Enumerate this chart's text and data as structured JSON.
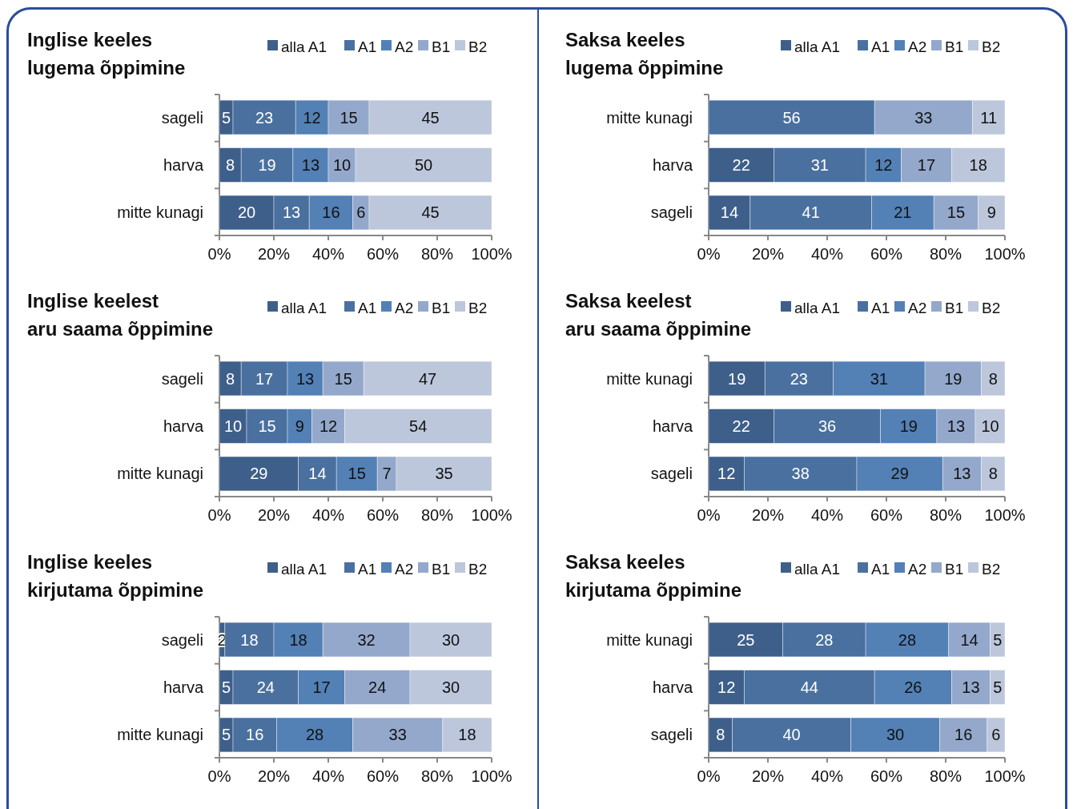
{
  "chart_data": [
    {
      "type": "bar",
      "orientation": "horizontal",
      "stacked": true,
      "title": "Inglise keeles\nlugema õppimine",
      "categories": [
        "sageli",
        "harva",
        "mitte kunagi"
      ],
      "series": [
        {
          "name": "alla A1",
          "color": "#3e5f8a",
          "values": [
            5,
            8,
            20
          ]
        },
        {
          "name": "A1",
          "color": "#4a709f",
          "values": [
            23,
            19,
            13
          ]
        },
        {
          "name": "A2",
          "color": "#5380b5",
          "values": [
            12,
            13,
            16
          ]
        },
        {
          "name": "B1",
          "color": "#93a8cb",
          "values": [
            15,
            10,
            6
          ]
        },
        {
          "name": "B2",
          "color": "#bcc7dc",
          "values": [
            45,
            50,
            45
          ]
        }
      ],
      "xlim": [
        0,
        100
      ],
      "xticks": [
        {
          "value": 0,
          "label": "0%"
        },
        {
          "value": 20,
          "label": "20%"
        },
        {
          "value": 40,
          "label": "40%"
        },
        {
          "value": 60,
          "label": "60%"
        },
        {
          "value": 80,
          "label": "80%"
        },
        {
          "value": 100,
          "label": "100%"
        }
      ],
      "data_labels": true,
      "legend": "top right",
      "grid": false
    },
    {
      "type": "bar",
      "orientation": "horizontal",
      "stacked": true,
      "title": "Saksa keeles\nlugema õppimine",
      "categories": [
        "mitte kunagi",
        "harva",
        "sageli"
      ],
      "series": [
        {
          "name": "alla A1",
          "color": "#3e5f8a",
          "values": [
            null,
            22,
            14
          ]
        },
        {
          "name": "A1",
          "color": "#4a709f",
          "values": [
            56,
            31,
            41
          ]
        },
        {
          "name": "A2",
          "color": "#5380b5",
          "values": [
            null,
            12,
            21
          ]
        },
        {
          "name": "B1",
          "color": "#93a8cb",
          "values": [
            33,
            17,
            15
          ]
        },
        {
          "name": "B2",
          "color": "#bcc7dc",
          "values": [
            11,
            18,
            9
          ]
        }
      ],
      "xlim": [
        0,
        100
      ],
      "xticks": [
        {
          "value": 0,
          "label": "0%"
        },
        {
          "value": 20,
          "label": "20%"
        },
        {
          "value": 40,
          "label": "40%"
        },
        {
          "value": 60,
          "label": "60%"
        },
        {
          "value": 80,
          "label": "80%"
        },
        {
          "value": 100,
          "label": "100%"
        }
      ],
      "data_labels": true,
      "legend": "top right",
      "grid": false
    },
    {
      "type": "bar",
      "orientation": "horizontal",
      "stacked": true,
      "title": "Inglise keelest\naru saama õppimine",
      "categories": [
        "sageli",
        "harva",
        "mitte kunagi"
      ],
      "series": [
        {
          "name": "alla A1",
          "color": "#3e5f8a",
          "values": [
            8,
            10,
            29
          ]
        },
        {
          "name": "A1",
          "color": "#4a709f",
          "values": [
            17,
            15,
            14
          ]
        },
        {
          "name": "A2",
          "color": "#5380b5",
          "values": [
            13,
            9,
            15
          ]
        },
        {
          "name": "B1",
          "color": "#93a8cb",
          "values": [
            15,
            12,
            7
          ]
        },
        {
          "name": "B2",
          "color": "#bcc7dc",
          "values": [
            47,
            54,
            35
          ]
        }
      ],
      "xlim": [
        0,
        100
      ],
      "xticks": [
        {
          "value": 0,
          "label": "0%"
        },
        {
          "value": 20,
          "label": "20%"
        },
        {
          "value": 40,
          "label": "40%"
        },
        {
          "value": 60,
          "label": "60%"
        },
        {
          "value": 80,
          "label": "80%"
        },
        {
          "value": 100,
          "label": "100%"
        }
      ],
      "data_labels": true,
      "legend": "top right",
      "grid": false
    },
    {
      "type": "bar",
      "orientation": "horizontal",
      "stacked": true,
      "title": "Saksa keelest\naru saama õppimine",
      "categories": [
        "mitte kunagi",
        "harva",
        "sageli"
      ],
      "series": [
        {
          "name": "alla A1",
          "color": "#3e5f8a",
          "values": [
            19,
            22,
            12
          ]
        },
        {
          "name": "A1",
          "color": "#4a709f",
          "values": [
            23,
            36,
            38
          ]
        },
        {
          "name": "A2",
          "color": "#5380b5",
          "values": [
            31,
            19,
            29
          ]
        },
        {
          "name": "B1",
          "color": "#93a8cb",
          "values": [
            19,
            13,
            13
          ]
        },
        {
          "name": "B2",
          "color": "#bcc7dc",
          "values": [
            8,
            10,
            8
          ]
        }
      ],
      "xlim": [
        0,
        100
      ],
      "xticks": [
        {
          "value": 0,
          "label": "0%"
        },
        {
          "value": 20,
          "label": "20%"
        },
        {
          "value": 40,
          "label": "40%"
        },
        {
          "value": 60,
          "label": "60%"
        },
        {
          "value": 80,
          "label": "80%"
        },
        {
          "value": 100,
          "label": "100%"
        }
      ],
      "data_labels": true,
      "legend": "top right",
      "grid": false
    },
    {
      "type": "bar",
      "orientation": "horizontal",
      "stacked": true,
      "title": "Inglise keeles\nkirjutama õppimine",
      "categories": [
        "sageli",
        "harva",
        "mitte kunagi"
      ],
      "series": [
        {
          "name": "alla A1",
          "color": "#3e5f8a",
          "values": [
            2,
            5,
            5
          ]
        },
        {
          "name": "A1",
          "color": "#4a709f",
          "values": [
            18,
            24,
            16
          ]
        },
        {
          "name": "A2",
          "color": "#5380b5",
          "values": [
            18,
            17,
            28
          ]
        },
        {
          "name": "B1",
          "color": "#93a8cb",
          "values": [
            32,
            24,
            33
          ]
        },
        {
          "name": "B2",
          "color": "#bcc7dc",
          "values": [
            30,
            30,
            18
          ]
        }
      ],
      "xlim": [
        0,
        100
      ],
      "xticks": [
        {
          "value": 0,
          "label": "0%"
        },
        {
          "value": 20,
          "label": "20%"
        },
        {
          "value": 40,
          "label": "40%"
        },
        {
          "value": 60,
          "label": "60%"
        },
        {
          "value": 80,
          "label": "80%"
        },
        {
          "value": 100,
          "label": "100%"
        }
      ],
      "data_labels": true,
      "legend": "top right",
      "grid": false
    },
    {
      "type": "bar",
      "orientation": "horizontal",
      "stacked": true,
      "title": "Saksa keeles\nkirjutama õppimine",
      "categories": [
        "mitte kunagi",
        "harva",
        "sageli"
      ],
      "series": [
        {
          "name": "alla A1",
          "color": "#3e5f8a",
          "values": [
            25,
            12,
            8
          ]
        },
        {
          "name": "A1",
          "color": "#4a709f",
          "values": [
            28,
            44,
            40
          ]
        },
        {
          "name": "A2",
          "color": "#5380b5",
          "values": [
            28,
            26,
            30
          ]
        },
        {
          "name": "B1",
          "color": "#93a8cb",
          "values": [
            14,
            13,
            16
          ]
        },
        {
          "name": "B2",
          "color": "#bcc7dc",
          "values": [
            5,
            5,
            6
          ]
        }
      ],
      "xlim": [
        0,
        100
      ],
      "xticks": [
        {
          "value": 0,
          "label": "0%"
        },
        {
          "value": 20,
          "label": "20%"
        },
        {
          "value": 40,
          "label": "40%"
        },
        {
          "value": 60,
          "label": "60%"
        },
        {
          "value": 80,
          "label": "80%"
        },
        {
          "value": 100,
          "label": "100%"
        }
      ],
      "data_labels": true,
      "legend": "top right",
      "grid": false
    }
  ]
}
